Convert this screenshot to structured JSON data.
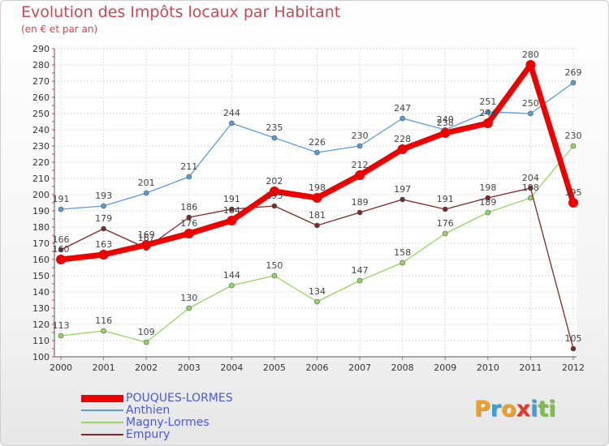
{
  "header": {
    "title": "Evolution des Impôts locaux par Habitant",
    "subtitle": "(en € et par an)"
  },
  "logo": {
    "letters": [
      {
        "char": "P",
        "color": "#f0a020"
      },
      {
        "char": "r",
        "color": "#3aa0d8"
      },
      {
        "char": "o",
        "color": "#f0a020"
      },
      {
        "char": "x",
        "color": "#e23a2a"
      },
      {
        "char": "i",
        "color": "#3aa0d8"
      },
      {
        "char": "t",
        "color": "#7cc242"
      },
      {
        "char": "i",
        "color": "#7cc242"
      }
    ]
  },
  "chart_data": {
    "type": "line",
    "x": [
      "2000",
      "2001",
      "2002",
      "2003",
      "2004",
      "2005",
      "2006",
      "2007",
      "2008",
      "2009",
      "2010",
      "2011",
      "2012"
    ],
    "ylim": [
      100,
      290
    ],
    "yticks": [
      100,
      110,
      120,
      130,
      140,
      150,
      160,
      170,
      180,
      190,
      200,
      210,
      220,
      230,
      240,
      250,
      260,
      270,
      280,
      290
    ],
    "grid": true,
    "legend": "bottom-left",
    "series": [
      {
        "name": "POUQUES-LORMES",
        "color": "#ee0000",
        "weight": "bold",
        "values": [
          160,
          163,
          169,
          176,
          184,
          202,
          198,
          212,
          228,
          238,
          244,
          280,
          195
        ],
        "labels": [
          "160",
          "163",
          "169",
          "176",
          "184",
          "202",
          "198",
          "212",
          "228",
          "238",
          "244",
          "280",
          "195"
        ]
      },
      {
        "name": "Anthien",
        "color": "#5b9bd5",
        "weight": "normal",
        "values": [
          191,
          193,
          201,
          211,
          244,
          235,
          226,
          230,
          247,
          240,
          251,
          250,
          269
        ],
        "labels": [
          "191",
          "193",
          "201",
          "211",
          "244",
          "235",
          "226",
          "230",
          "247",
          "240",
          "251",
          "250",
          "269"
        ]
      },
      {
        "name": "Magny-Lormes",
        "color": "#96d464",
        "weight": "normal",
        "values": [
          113,
          116,
          109,
          130,
          144,
          150,
          134,
          147,
          158,
          176,
          189,
          198,
          230
        ],
        "labels": [
          "113",
          "116",
          "109",
          "130",
          "144",
          "150",
          "134",
          "147",
          "158",
          "176",
          "189",
          "198",
          "230"
        ]
      },
      {
        "name": "Empury",
        "color": "#7b2a2a",
        "weight": "normal",
        "values": [
          166,
          179,
          167,
          186,
          191,
          193,
          181,
          189,
          197,
          191,
          198,
          204,
          105
        ],
        "labels": [
          "166",
          "179",
          "167",
          "186",
          "191",
          "193",
          "181",
          "189",
          "197",
          "191",
          "198",
          "204",
          "105"
        ]
      }
    ]
  }
}
